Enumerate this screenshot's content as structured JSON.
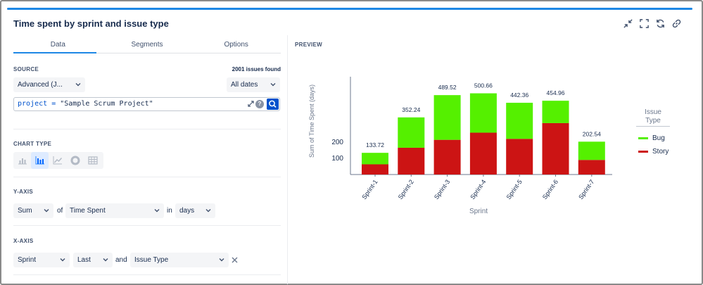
{
  "gadget": {
    "title": "Time spent by sprint and issue type"
  },
  "header_icons": [
    "minimize-icon",
    "fullscreen-icon",
    "refresh-icon",
    "link-icon"
  ],
  "tabs": [
    {
      "label": "Data",
      "active": true
    },
    {
      "label": "Segments",
      "active": false
    },
    {
      "label": "Options",
      "active": false
    }
  ],
  "source": {
    "label": "SOURCE",
    "issues_found": "2001 issues found",
    "mode_select": "Advanced (J...",
    "dates_select": "All dates",
    "query_field": "project",
    "query_operator": "=",
    "query_value": "\"Sample Scrum Project\""
  },
  "chart_type": {
    "label": "CHART TYPE",
    "options": [
      "bar-chart-icon",
      "stacked-bar-chart-icon",
      "line-chart-icon",
      "pie-chart-icon",
      "table-icon"
    ],
    "selected": "stacked-bar-chart-icon"
  },
  "y_axis": {
    "label": "Y-AXIS",
    "aggregation": "Sum",
    "of_text": "of",
    "field": "Time Spent",
    "in_text": "in",
    "unit": "days"
  },
  "x_axis": {
    "label": "X-AXIS",
    "field": "Sprint",
    "range": "Last",
    "and_text": "and",
    "group_by": "Issue Type"
  },
  "preview": {
    "label": "PREVIEW"
  },
  "colors": {
    "accent": "#1e88e5",
    "bug": "#55f000",
    "story": "#cc1414"
  },
  "chart_data": {
    "type": "bar",
    "stacked": true,
    "xlabel": "Sprint",
    "ylabel": "Sum of Time Spent (days)",
    "categories": [
      "Sprint-1",
      "Sprint-2",
      "Sprint-3",
      "Sprint-4",
      "Sprint-5",
      "Sprint-6",
      "Sprint-7"
    ],
    "series": [
      {
        "name": "Story",
        "values": [
          63,
          165,
          214,
          258,
          220,
          317,
          90
        ]
      },
      {
        "name": "Bug",
        "values": [
          70.72,
          187.24,
          275.52,
          242.66,
          222.36,
          137.96,
          112.54
        ]
      }
    ],
    "totals": [
      "133.72",
      "352.24",
      "489.52",
      "500.66",
      "442.36",
      "454.96",
      "202.54"
    ],
    "yticks": [
      "100",
      "200"
    ],
    "legend_title": "Issue Type",
    "legend_position": "right",
    "grid": false
  }
}
